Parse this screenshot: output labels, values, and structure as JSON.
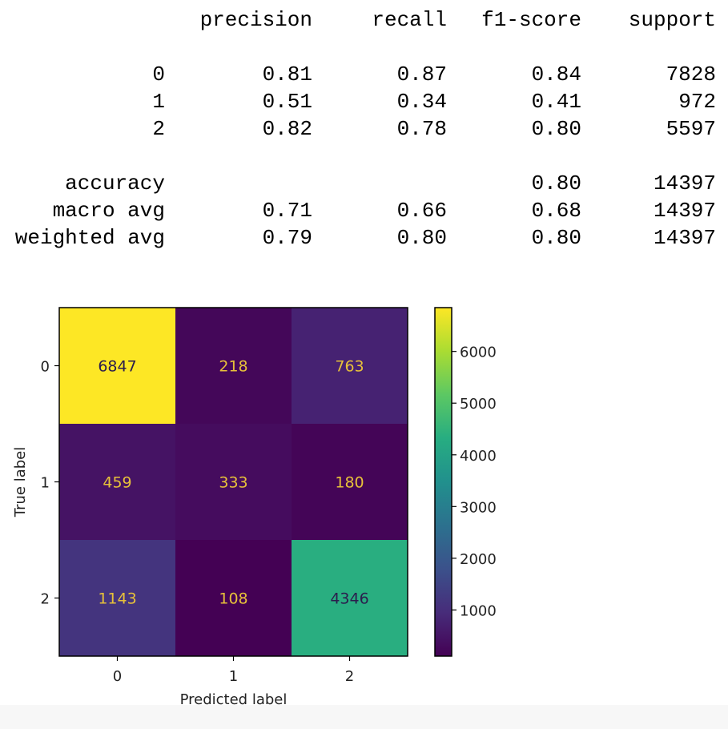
{
  "report": {
    "headers": [
      "precision",
      "recall",
      "f1-score",
      "support"
    ],
    "class_rows": [
      {
        "label": "0",
        "precision": "0.81",
        "recall": "0.87",
        "f1": "0.84",
        "support": "7828"
      },
      {
        "label": "1",
        "precision": "0.51",
        "recall": "0.34",
        "f1": "0.41",
        "support": "972"
      },
      {
        "label": "2",
        "precision": "0.82",
        "recall": "0.78",
        "f1": "0.80",
        "support": "5597"
      }
    ],
    "summary_rows": [
      {
        "label": "accuracy",
        "precision": "",
        "recall": "",
        "f1": "0.80",
        "support": "14397"
      },
      {
        "label": "macro avg",
        "precision": "0.71",
        "recall": "0.66",
        "f1": "0.68",
        "support": "14397"
      },
      {
        "label": "weighted avg",
        "precision": "0.79",
        "recall": "0.80",
        "f1": "0.80",
        "support": "14397"
      }
    ]
  },
  "chart_data": {
    "type": "heatmap",
    "title": "",
    "xlabel": "Predicted label",
    "ylabel": "True label",
    "x_categories": [
      "0",
      "1",
      "2"
    ],
    "y_categories": [
      "0",
      "1",
      "2"
    ],
    "values": [
      [
        6847,
        218,
        763
      ],
      [
        459,
        333,
        180
      ],
      [
        1143,
        108,
        4346
      ]
    ],
    "colormap": "viridis",
    "colorbar": {
      "ticks": [
        1000,
        2000,
        3000,
        4000,
        5000,
        6000
      ],
      "tick_labels": [
        "1000",
        "2000",
        "3000",
        "4000",
        "5000",
        "6000"
      ],
      "range": [
        108,
        6847
      ]
    },
    "text_color_on_dark": "#e7c13a",
    "text_color_on_light": "#2b1d4d"
  }
}
